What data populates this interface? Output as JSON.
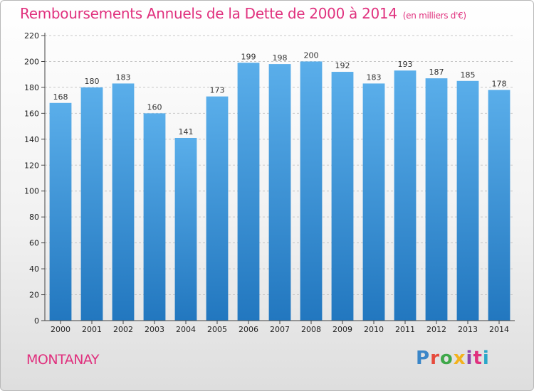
{
  "title": "Remboursements Annuels de la Dette de 2000 à 2014",
  "unit": "(en milliers d'€)",
  "city": "MONTANAY",
  "logo": {
    "text": "Proxiti",
    "letters": [
      {
        "ch": "P",
        "color": "#3a86c8"
      },
      {
        "ch": "r",
        "color": "#e64a3c"
      },
      {
        "ch": "o",
        "color": "#3fa84a"
      },
      {
        "ch": "x",
        "color": "#f3b21d"
      },
      {
        "ch": "i",
        "color": "#8e44ad"
      },
      {
        "ch": "t",
        "color": "#e0317e"
      },
      {
        "ch": "i",
        "color": "#2aa7c9"
      }
    ]
  },
  "colors": {
    "accent": "#e0317e",
    "bar_top": "#5aaeea",
    "bar_bottom": "#2277bf",
    "grid": "#c7c7c7"
  },
  "chart_data": {
    "type": "bar",
    "title": "Remboursements Annuels de la Dette de 2000 à 2014",
    "subtitle": "(en milliers d'€)",
    "categories": [
      "2000",
      "2001",
      "2002",
      "2003",
      "2004",
      "2005",
      "2006",
      "2007",
      "2008",
      "2009",
      "2010",
      "2011",
      "2012",
      "2013",
      "2014"
    ],
    "values": [
      168,
      180,
      183,
      160,
      141,
      173,
      199,
      198,
      200,
      192,
      183,
      193,
      187,
      185,
      178
    ],
    "ylim": [
      0,
      220
    ],
    "yticks": [
      0,
      20,
      40,
      60,
      80,
      100,
      120,
      140,
      160,
      180,
      200,
      220
    ],
    "grid": true,
    "data_labels": true
  }
}
